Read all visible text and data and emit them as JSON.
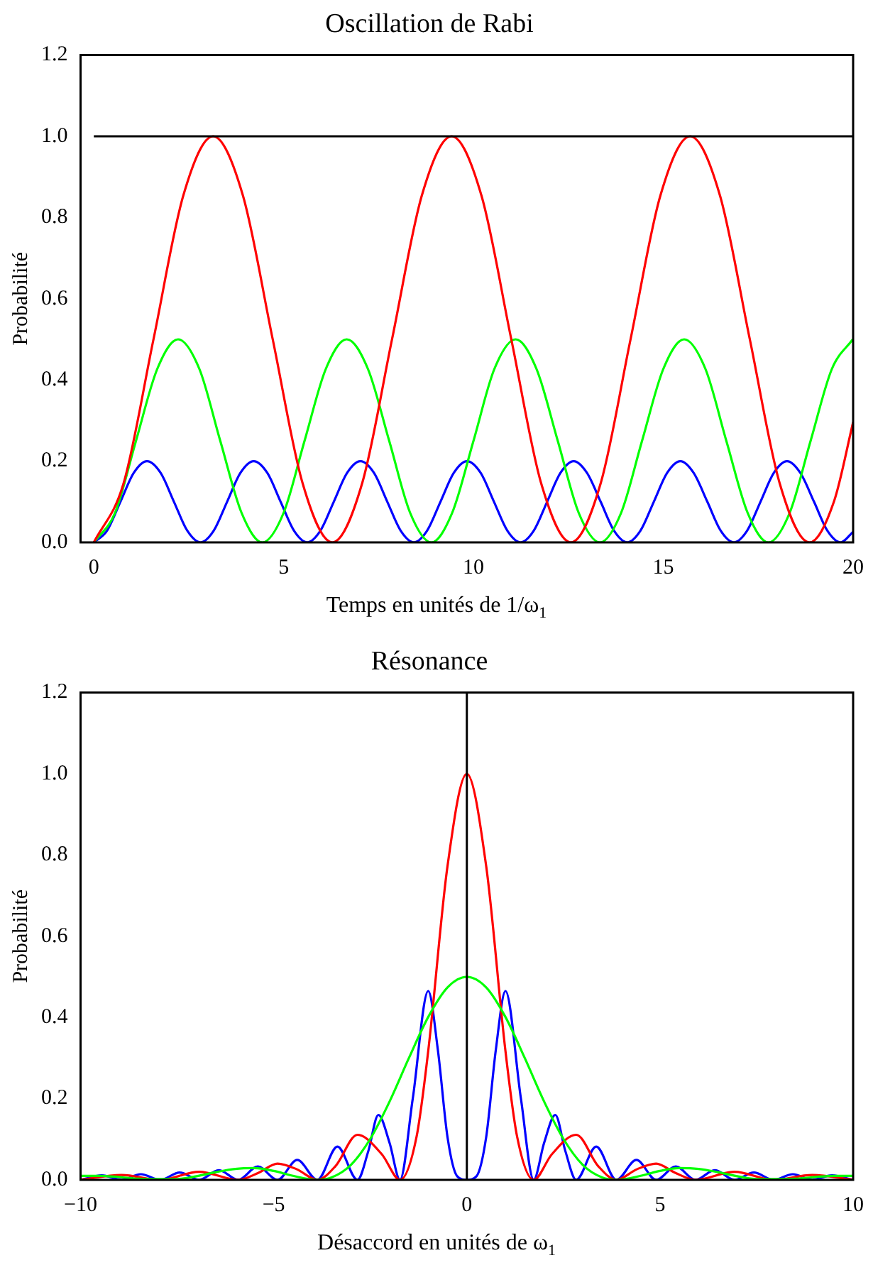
{
  "chart_data": [
    {
      "type": "line",
      "title": "Oscillation de Rabi",
      "xlabel": "Temps en unités de 1/ω$_{1}$",
      "ylabel": "Probabilité",
      "marker": "none",
      "xlim": [
        -0.35,
        20
      ],
      "xticks": [
        0,
        5,
        10,
        15,
        20
      ],
      "ylim": [
        0,
        1.2
      ],
      "yticks": [
        {
          "value": 0,
          "label": "0.0"
        },
        {
          "value": 0.2,
          "label": "0.2"
        },
        {
          "value": 0.4,
          "label": "0.4"
        },
        {
          "value": 0.6,
          "label": "0.6"
        },
        {
          "value": 0.8,
          "label": "0.8"
        },
        {
          "value": 1,
          "label": "1.0"
        },
        {
          "value": 1.2,
          "label": "1.2"
        }
      ],
      "ref_lines": [
        {
          "axis": "y",
          "value": 1,
          "color": "#000000"
        }
      ],
      "series": [
        {
          "color": "#ff0000",
          "x": [
            0,
            0.785,
            1.571,
            2.356,
            3.142,
            3.927,
            4.712,
            5.498,
            6.283,
            7.069,
            7.854,
            8.639,
            9.425,
            10.21,
            10.996,
            11.781,
            12.566,
            13.352,
            14.137,
            14.923,
            15.708,
            16.493,
            17.279,
            18.064,
            18.85,
            19.5,
            20
          ],
          "values": [
            0,
            0.146,
            0.5,
            0.854,
            1,
            0.854,
            0.5,
            0.146,
            0,
            0.146,
            0.5,
            0.854,
            1,
            0.854,
            0.5,
            0.146,
            0,
            0.146,
            0.5,
            0.854,
            1,
            0.854,
            0.5,
            0.146,
            0,
            0.102,
            0.296
          ]
        },
        {
          "color": "#00ff00",
          "x": [
            0,
            0.56,
            1.11,
            1.67,
            2.22,
            2.78,
            3.33,
            3.89,
            4.44,
            5,
            5.55,
            6.11,
            6.66,
            7.22,
            7.78,
            8.33,
            8.89,
            9.44,
            10,
            10.55,
            11.11,
            11.66,
            12.22,
            12.77,
            13.33,
            13.89,
            14.44,
            15,
            15.55,
            16.11,
            16.66,
            17.22,
            17.77,
            18.33,
            18.88,
            19.44,
            19.99
          ],
          "values": [
            0,
            0.073,
            0.25,
            0.427,
            0.5,
            0.427,
            0.25,
            0.073,
            0,
            0.073,
            0.25,
            0.427,
            0.5,
            0.427,
            0.25,
            0.073,
            0,
            0.073,
            0.25,
            0.427,
            0.5,
            0.427,
            0.25,
            0.073,
            0,
            0.073,
            0.25,
            0.427,
            0.5,
            0.427,
            0.25,
            0.073,
            0,
            0.073,
            0.25,
            0.427,
            0.5
          ]
        },
        {
          "color": "#0000ff",
          "x": [
            0,
            0.35,
            0.7,
            1.05,
            1.4,
            1.76,
            2.11,
            2.46,
            2.81,
            3.16,
            3.51,
            3.86,
            4.21,
            4.57,
            4.92,
            5.27,
            5.62,
            5.97,
            6.32,
            6.67,
            7.02,
            7.38,
            7.73,
            8.08,
            8.43,
            8.78,
            9.13,
            9.48,
            9.83,
            10.19,
            10.54,
            10.89,
            11.24,
            11.59,
            11.94,
            12.29,
            12.64,
            12.99,
            13.35,
            13.7,
            14.05,
            14.4,
            14.75,
            15.1,
            15.45,
            15.8,
            16.16,
            16.51,
            16.86,
            17.21,
            17.56,
            17.91,
            18.26,
            18.61,
            18.97,
            19.32,
            19.67,
            20
          ],
          "values": [
            0,
            0.029,
            0.1,
            0.171,
            0.2,
            0.171,
            0.1,
            0.029,
            0,
            0.029,
            0.1,
            0.171,
            0.2,
            0.171,
            0.1,
            0.029,
            0,
            0.029,
            0.1,
            0.171,
            0.2,
            0.171,
            0.1,
            0.029,
            0,
            0.029,
            0.1,
            0.171,
            0.2,
            0.171,
            0.1,
            0.029,
            0,
            0.029,
            0.1,
            0.171,
            0.2,
            0.171,
            0.1,
            0.029,
            0,
            0.029,
            0.1,
            0.171,
            0.2,
            0.171,
            0.1,
            0.029,
            0,
            0.029,
            0.1,
            0.171,
            0.2,
            0.171,
            0.1,
            0.029,
            0,
            0.026
          ]
        }
      ]
    },
    {
      "type": "line",
      "title": "Résonance",
      "xlabel": "Désaccord en unités de  ω$_{1}$",
      "ylabel": "Probabilité",
      "marker": "none",
      "xlim": [
        -10,
        10
      ],
      "xticks": [
        {
          "value": -10,
          "label": "−10"
        },
        {
          "value": -5,
          "label": "−5"
        },
        0,
        5,
        10
      ],
      "ylim": [
        0,
        1.2
      ],
      "yticks": [
        {
          "value": 0,
          "label": "0.0"
        },
        {
          "value": 0.2,
          "label": "0.2"
        },
        {
          "value": 0.4,
          "label": "0.4"
        },
        {
          "value": 0.6,
          "label": "0.6"
        },
        {
          "value": 0.8,
          "label": "0.8"
        },
        {
          "value": 1,
          "label": "1.0"
        },
        {
          "value": 1.2,
          "label": "1.2"
        }
      ],
      "ref_lines": [
        {
          "axis": "x",
          "value": 0,
          "color": "#000000"
        }
      ],
      "series": [
        {
          "color": "#00ff00",
          "x": [
            -10,
            -9.5,
            -9,
            -8.5,
            -7.5,
            -7,
            -6.5,
            -6,
            -5.5,
            -5,
            -4.5,
            -3.87,
            -3.5,
            -3,
            -2.5,
            -2,
            -1.5,
            -1,
            -0.5,
            0,
            0.5,
            1,
            1.5,
            2,
            2.5,
            3,
            3.5,
            3.87,
            4.5,
            5,
            5.5,
            6,
            6.5,
            7,
            7.5,
            8.5,
            9,
            9.5,
            10
          ],
          "values": [
            0.01,
            0.01,
            0.007,
            0.003,
            0.002,
            0.009,
            0.019,
            0.027,
            0.029,
            0.022,
            0.01,
            0,
            0.006,
            0.037,
            0.101,
            0.193,
            0.3,
            0.401,
            0.474,
            0.5,
            0.474,
            0.401,
            0.3,
            0.193,
            0.101,
            0.037,
            0.006,
            0,
            0.01,
            0.022,
            0.029,
            0.027,
            0.019,
            0.009,
            0.002,
            0.003,
            0.007,
            0.01,
            0.01
          ]
        },
        {
          "color": "#ff0000",
          "x": [
            -10,
            -8.94,
            -7.94,
            -6.93,
            -5.92,
            -5.4,
            -4.9,
            -4.4,
            -3.87,
            -3.4,
            -2.83,
            -2.2,
            -1.73,
            -1.3,
            -1,
            -0.5,
            0,
            0.5,
            1,
            1.3,
            1.73,
            2.2,
            2.83,
            3.4,
            3.87,
            4.4,
            4.9,
            5.4,
            5.92,
            6.93,
            7.94,
            8.94,
            10
          ],
          "values": [
            0,
            0.012,
            0,
            0.02,
            0,
            0.017,
            0.04,
            0.026,
            0,
            0.034,
            0.111,
            0.063,
            0,
            0.107,
            0.317,
            0.773,
            1,
            0.773,
            0.317,
            0.107,
            0,
            0.063,
            0.111,
            0.034,
            0,
            0.026,
            0.04,
            0.017,
            0,
            0.02,
            0,
            0.012,
            0
          ]
        },
        {
          "color": "#0000ff",
          "x": [
            -10,
            -9.45,
            -8.94,
            -8.44,
            -7.94,
            -7.43,
            -6.93,
            -6.42,
            -5.92,
            -5.41,
            -4.9,
            -4.39,
            -3.87,
            -3.35,
            -2.83,
            -2.55,
            -2.29,
            -2,
            -1.73,
            -1.4,
            -1,
            -0.75,
            -0.5,
            -0.25,
            0,
            0.25,
            0.5,
            0.75,
            1,
            1.4,
            1.73,
            2,
            2.29,
            2.55,
            2.83,
            3.35,
            3.87,
            4.39,
            4.9,
            5.41,
            5.92,
            6.42,
            6.93,
            7.43,
            7.94,
            8.44,
            8.94,
            9.45,
            10
          ],
          "values": [
            0,
            0.011,
            0,
            0.014,
            0,
            0.018,
            0,
            0.024,
            0,
            0.033,
            0,
            0.049,
            0,
            0.082,
            0,
            0.071,
            0.16,
            0.091,
            0,
            0.2,
            0.465,
            0.32,
            0.105,
            0.009,
            0,
            0.009,
            0.105,
            0.32,
            0.465,
            0.2,
            0,
            0.091,
            0.16,
            0.071,
            0,
            0.082,
            0,
            0.049,
            0,
            0.033,
            0,
            0.024,
            0,
            0.018,
            0,
            0.014,
            0,
            0.011,
            0
          ]
        }
      ]
    }
  ]
}
